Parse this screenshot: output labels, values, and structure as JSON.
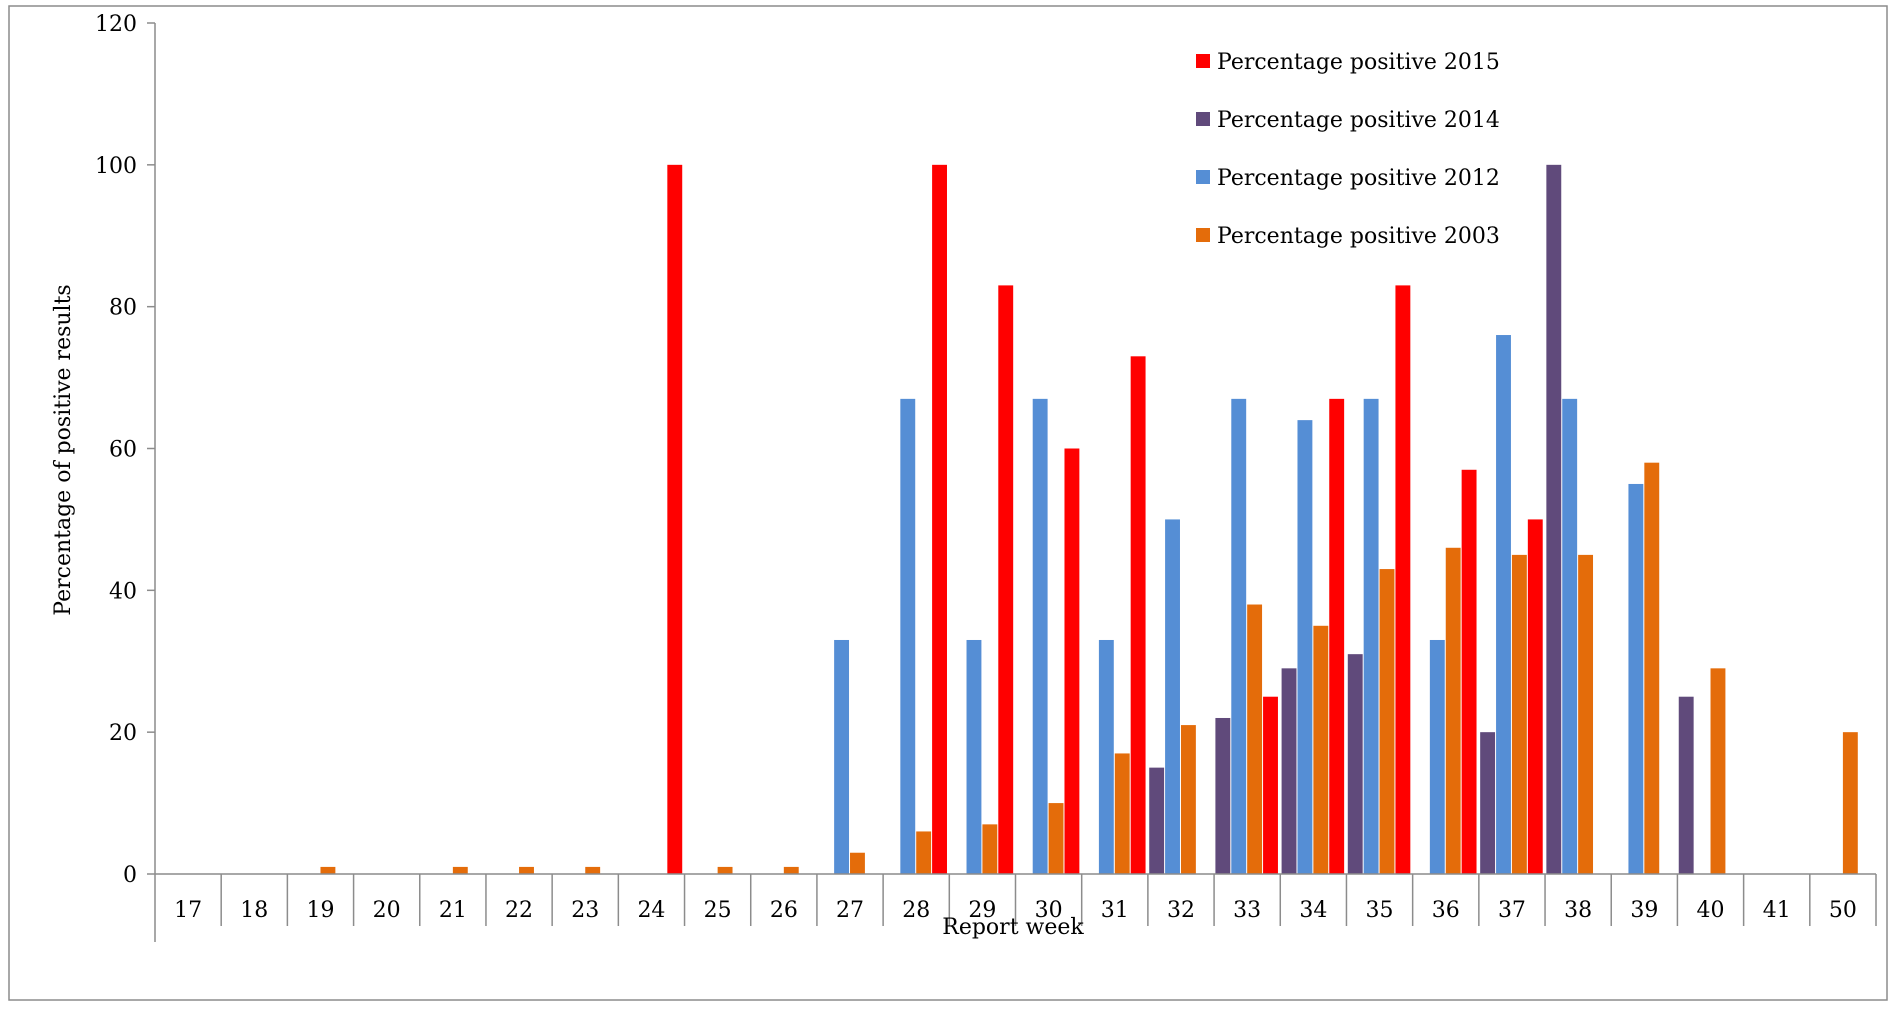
{
  "chart_data": {
    "type": "bar",
    "title": "",
    "xlabel": "Report week",
    "ylabel": "Percentage of positive results",
    "ylim": [
      0,
      120
    ],
    "yticks": [
      "0",
      "20",
      "40",
      "60",
      "80",
      "100",
      "120"
    ],
    "legend_position": "top-right",
    "grid": false,
    "categories": [
      "17",
      "18",
      "19",
      "20",
      "21",
      "22",
      "23",
      "24",
      "25",
      "26",
      "27",
      "28",
      "29",
      "30",
      "31",
      "32",
      "33",
      "34",
      "35",
      "36",
      "37",
      "38",
      "39",
      "40",
      "41",
      "50"
    ],
    "series": [
      {
        "name": "Percentage positive 2014",
        "color": "#604A7B",
        "values": [
          0,
          0,
          0,
          0,
          0,
          0,
          0,
          0,
          0,
          0,
          0,
          0,
          0,
          0,
          0,
          15,
          22,
          29,
          31,
          0,
          20,
          100,
          0,
          25,
          0,
          0
        ]
      },
      {
        "name": "Percentage positive 2012",
        "color": "#558ED5",
        "values": [
          0,
          0,
          0,
          0,
          0,
          0,
          0,
          0,
          0,
          0,
          33,
          67,
          33,
          67,
          33,
          50,
          67,
          64,
          67,
          33,
          76,
          67,
          55,
          0,
          0,
          0
        ]
      },
      {
        "name": "Percentage positive 2003",
        "color": "#E46C0A",
        "values": [
          0,
          0,
          1,
          0,
          1,
          1,
          1,
          0,
          1,
          1,
          3,
          6,
          7,
          10,
          17,
          21,
          38,
          35,
          43,
          46,
          45,
          45,
          58,
          29,
          0,
          20
        ]
      },
      {
        "name": "Percentage positive 2015",
        "color": "#FF0000",
        "values": [
          0,
          0,
          0,
          0,
          0,
          0,
          0,
          100,
          0,
          0,
          0,
          100,
          83,
          60,
          73,
          0,
          25,
          67,
          83,
          57,
          50,
          0,
          0,
          0,
          0,
          0
        ]
      }
    ],
    "legend_order": [
      3,
      0,
      1,
      2
    ]
  }
}
